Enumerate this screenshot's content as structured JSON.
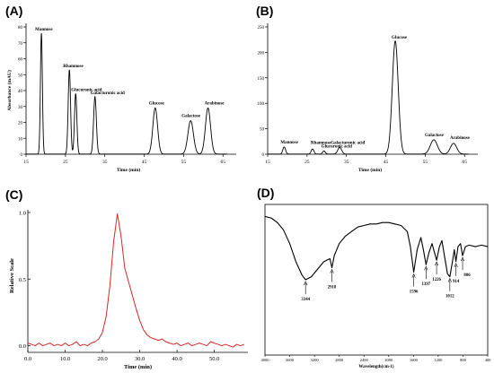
{
  "panels": [
    {
      "letter": "(A)",
      "chart_data": {
        "type": "line",
        "xlabel": "Time (min)",
        "ylabel": "Absorbance (mAU)",
        "xlim": [
          15,
          67
        ],
        "ylim": [
          0,
          80
        ],
        "xticks": [
          15,
          25,
          35,
          45,
          55,
          65
        ],
        "yticks": [
          0,
          10,
          20,
          30,
          40,
          50,
          60,
          70,
          80
        ],
        "peaks": [
          {
            "name": "Mannose",
            "x": 18.9,
            "y": 76,
            "w": 0.25
          },
          {
            "name": "Rhamnose",
            "x": 26.0,
            "y": 53,
            "w": 0.3
          },
          {
            "name": "Glucuronic acid",
            "x": 27.6,
            "y": 38,
            "w": 0.3
          },
          {
            "name": "Galacturonic acid",
            "x": 32.5,
            "y": 36,
            "w": 0.35
          },
          {
            "name": "Glucose",
            "x": 47.8,
            "y": 29,
            "w": 0.6
          },
          {
            "name": "Galactose",
            "x": 56.8,
            "y": 21,
            "w": 0.7
          },
          {
            "name": "Arabinose",
            "x": 61.2,
            "y": 29,
            "w": 0.65
          }
        ]
      }
    },
    {
      "letter": "(B)",
      "chart_data": {
        "type": "line",
        "xlabel": "Time (min)",
        "ylabel": "",
        "xlim": [
          15,
          67
        ],
        "ylim": [
          0,
          250
        ],
        "xticks": [
          15,
          25,
          35,
          45,
          55,
          65
        ],
        "yticks": [
          0,
          50,
          100,
          150,
          200,
          250
        ],
        "peaks": [
          {
            "name": "Mannose",
            "x": 19.2,
            "y": 14,
            "w": 0.35
          },
          {
            "name": "Rhamnose",
            "x": 26.4,
            "y": 10,
            "w": 0.35
          },
          {
            "name": "Glucuronic acid",
            "x": 29.3,
            "y": 6,
            "w": 0.35
          },
          {
            "name": "Galacturonic acid",
            "x": 33.3,
            "y": 13,
            "w": 0.5
          },
          {
            "name": "Glucose",
            "x": 47.4,
            "y": 222,
            "w": 0.75
          },
          {
            "name": "Galactose",
            "x": 57.2,
            "y": 28,
            "w": 0.9
          },
          {
            "name": "Arabinose",
            "x": 62.2,
            "y": 21,
            "w": 0.8
          }
        ]
      }
    },
    {
      "letter": "(C)",
      "chart_data": {
        "type": "line",
        "xlabel": "Time (min)",
        "ylabel": "Relative Scale",
        "xlim": [
          0,
          59
        ],
        "ylim": [
          -0.05,
          1.02
        ],
        "xticks": [
          "0.0",
          "10.0",
          "20.0",
          "30.0",
          "40.0",
          "50.0"
        ],
        "xtick_values": [
          0,
          10,
          20,
          30,
          40,
          50
        ],
        "yticks": [
          "0.0",
          "0.5",
          "1.0"
        ],
        "ytick_values": [
          0,
          0.5,
          1.0
        ],
        "series": [
          {
            "color": "#d62728",
            "x": [
              0,
              1,
              2,
              3,
              4,
              5,
              6,
              7,
              8,
              9,
              10,
              11,
              12,
              13,
              14,
              15,
              16,
              17,
              18,
              19,
              20,
              21,
              22,
              23,
              24,
              25,
              26,
              27,
              28,
              29,
              30,
              31,
              32,
              33,
              34,
              35,
              36,
              37,
              38,
              39,
              40,
              41,
              42,
              43,
              44,
              45,
              46,
              47,
              48,
              49,
              50,
              51,
              52,
              53,
              54,
              55,
              56,
              57,
              58
            ],
            "y": [
              0.02,
              0.01,
              0.0,
              0.02,
              0.0,
              0.01,
              0.02,
              0.0,
              0.01,
              0.0,
              0.02,
              0.0,
              0.01,
              0.03,
              0.0,
              0.01,
              0.0,
              0.02,
              0.03,
              0.05,
              0.1,
              0.22,
              0.45,
              0.78,
              0.99,
              0.82,
              0.58,
              0.48,
              0.38,
              0.28,
              0.19,
              0.12,
              0.08,
              0.06,
              0.05,
              0.04,
              0.05,
              0.03,
              0.02,
              0.01,
              0.02,
              0.0,
              0.01,
              0.02,
              0.0,
              0.01,
              0.02,
              0.01,
              0.0,
              0.03,
              0.02,
              0.01,
              0.0,
              0.01,
              0.0,
              -0.01,
              0.01,
              0.0,
              0.01
            ]
          }
        ]
      }
    },
    {
      "letter": "(D)",
      "chart_data": {
        "type": "line",
        "xlabel": "Wavelength(cm-1)",
        "ylabel": "",
        "xlim": [
          4000,
          400
        ],
        "xticks": [
          4000,
          3600,
          3200,
          2800,
          2400,
          2000,
          1600,
          1200,
          800,
          400
        ],
        "annotations": [
          "3344",
          "2918",
          "1596",
          "1397",
          "1226",
          "1012",
          "914",
          "806"
        ],
        "series": [
          {
            "color": "#000000",
            "x": [
              4000,
              3900,
              3800,
              3700,
              3600,
              3500,
              3400,
              3344,
              3250,
              3150,
              3050,
              2950,
              2918,
              2880,
              2800,
              2700,
              2600,
              2500,
              2400,
              2300,
              2200,
              2100,
              2000,
              1900,
              1800,
              1700,
              1650,
              1596,
              1540,
              1480,
              1440,
              1397,
              1350,
              1300,
              1260,
              1226,
              1180,
              1140,
              1100,
              1050,
              1012,
              970,
              940,
              914,
              880,
              840,
              806,
              760,
              700,
              600,
              500,
              400
            ],
            "y": [
              0.92,
              0.91,
              0.88,
              0.83,
              0.74,
              0.62,
              0.53,
              0.5,
              0.52,
              0.57,
              0.62,
              0.64,
              0.58,
              0.66,
              0.74,
              0.79,
              0.82,
              0.85,
              0.86,
              0.87,
              0.87,
              0.88,
              0.88,
              0.87,
              0.86,
              0.82,
              0.72,
              0.55,
              0.7,
              0.78,
              0.7,
              0.6,
              0.68,
              0.74,
              0.68,
              0.63,
              0.72,
              0.76,
              0.66,
              0.54,
              0.52,
              0.62,
              0.7,
              0.62,
              0.72,
              0.74,
              0.66,
              0.72,
              0.73,
              0.72,
              0.73,
              0.72
            ]
          }
        ]
      }
    }
  ]
}
